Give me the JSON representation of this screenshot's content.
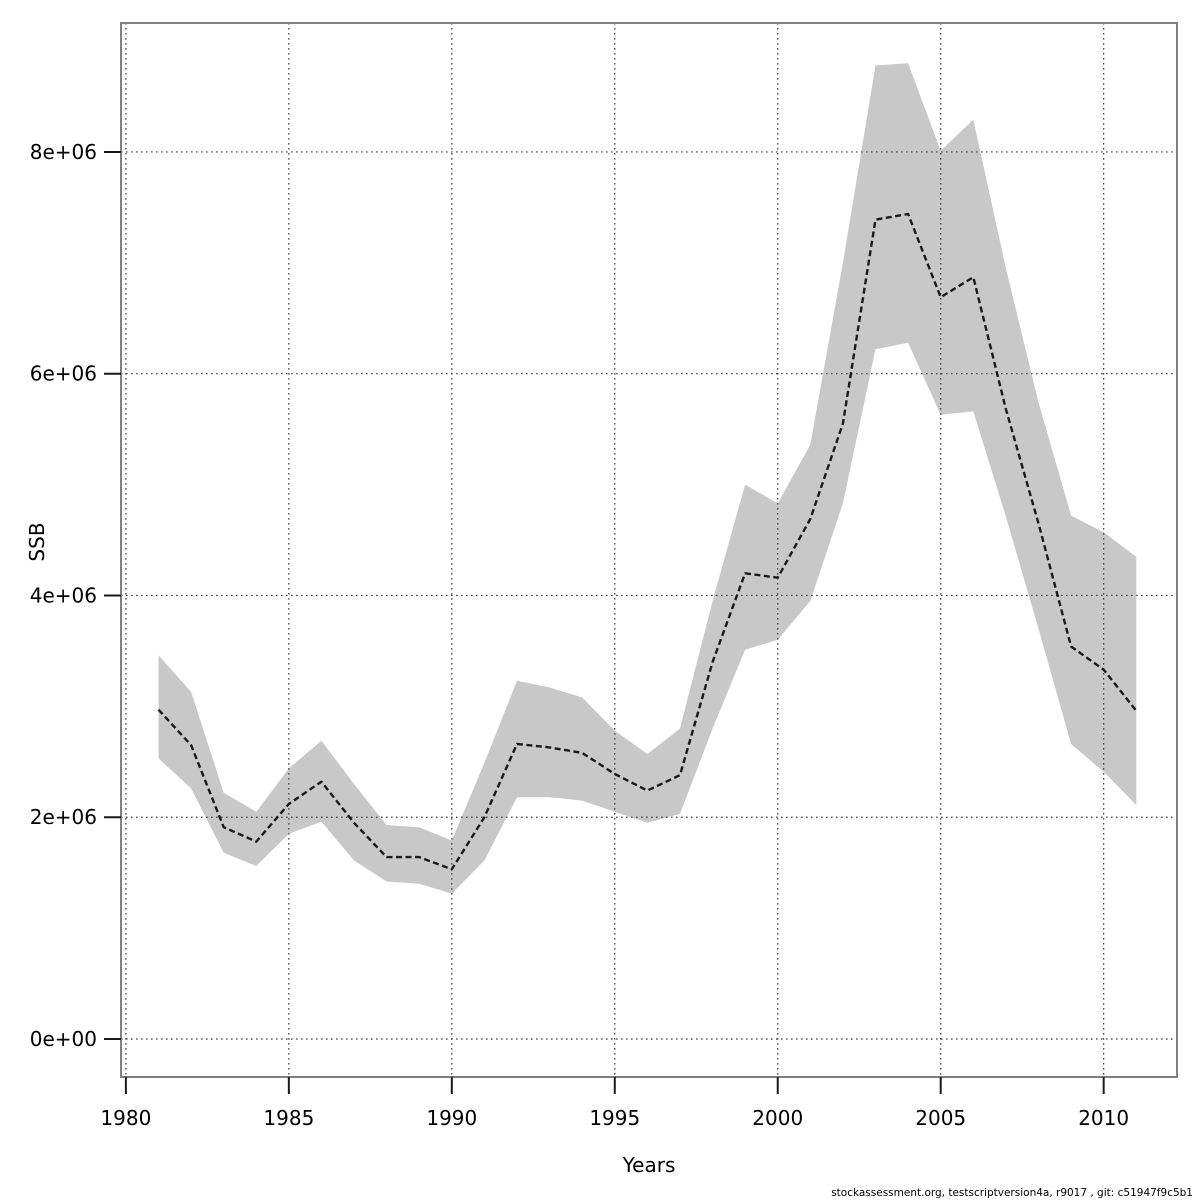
{
  "page": {
    "background": "#ffffff"
  },
  "chart_data": {
    "type": "line",
    "title": "",
    "xlabel": "Years",
    "ylabel": "SSB",
    "footer": "stockassessment.org, testscriptversion4a, r9017 , git: c51947f9c5b1",
    "legend": "none",
    "grid": "dotted",
    "x": [
      1981,
      1982,
      1983,
      1984,
      1985,
      1986,
      1987,
      1988,
      1989,
      1990,
      1991,
      1992,
      1993,
      1994,
      1995,
      1996,
      1997,
      1998,
      1999,
      2000,
      2001,
      2002,
      2003,
      2004,
      2005,
      2006,
      2007,
      2008,
      2009,
      2010,
      2011
    ],
    "series": [
      {
        "name": "SSB estimate",
        "style": "dashed-black-line",
        "values": [
          2970000,
          2650000,
          1910000,
          1780000,
          2120000,
          2320000,
          1950000,
          1640000,
          1640000,
          1530000,
          2000000,
          2660000,
          2630000,
          2580000,
          2390000,
          2240000,
          2380000,
          3400000,
          4200000,
          4160000,
          4690000,
          5550000,
          7390000,
          7440000,
          6690000,
          6870000,
          5680000,
          4650000,
          3540000,
          3330000,
          2960000
        ]
      },
      {
        "name": "CI lower",
        "style": "band-lower-edge",
        "values": [
          2530000,
          2260000,
          1680000,
          1560000,
          1850000,
          1960000,
          1610000,
          1420000,
          1400000,
          1310000,
          1610000,
          2180000,
          2180000,
          2150000,
          2050000,
          1950000,
          2030000,
          2800000,
          3510000,
          3600000,
          3950000,
          4830000,
          6220000,
          6280000,
          5630000,
          5660000,
          4710000,
          3700000,
          2660000,
          2410000,
          2110000
        ]
      },
      {
        "name": "CI upper",
        "style": "band-upper-edge",
        "values": [
          3460000,
          3130000,
          2220000,
          2050000,
          2440000,
          2690000,
          2300000,
          1930000,
          1910000,
          1790000,
          2490000,
          3230000,
          3170000,
          3080000,
          2780000,
          2570000,
          2800000,
          3950000,
          5000000,
          4830000,
          5360000,
          7000000,
          8780000,
          8800000,
          8010000,
          8290000,
          6950000,
          5740000,
          4720000,
          4570000,
          4350000
        ]
      }
    ],
    "x_ticks": [
      1980,
      1985,
      1990,
      1995,
      2000,
      2005,
      2010
    ],
    "y_ticks": [
      {
        "value": 0,
        "label": "0e+00"
      },
      {
        "value": 2000000,
        "label": "2e+06"
      },
      {
        "value": 4000000,
        "label": "4e+06"
      },
      {
        "value": 6000000,
        "label": "6e+06"
      },
      {
        "value": 8000000,
        "label": "8e+06"
      }
    ],
    "xlim": [
      1979.85,
      2012.25
    ],
    "ylim": [
      -343000,
      9163000
    ],
    "colors": {
      "band": "#c8c8c8",
      "line": "#1a1a1a",
      "grid": "#3c3c3c",
      "box": "#808080",
      "tick": "#1a1a1a",
      "text": "#000000",
      "background": "#ffffff"
    }
  }
}
